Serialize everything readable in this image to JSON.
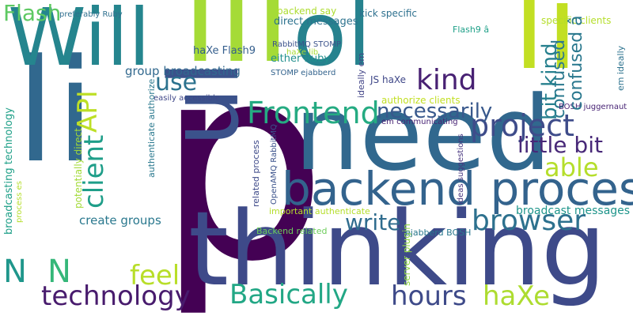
{
  "words": [
    {
      "text": "p",
      "color": "#440154"
    },
    {
      "text": "thinking",
      "color": "#3e4a89"
    },
    {
      "text": "need",
      "color": "#31688e"
    },
    {
      "text": "li",
      "color": "#31688e"
    },
    {
      "text": "lli",
      "color": "#a5db36"
    },
    {
      "text": "li",
      "color": "#c2df23"
    },
    {
      "text": "ul",
      "color": "#3b528b"
    },
    {
      "text": "ol",
      "color": "#26828e"
    },
    {
      "text": "Will",
      "color": "#25858e"
    },
    {
      "text": "backend process",
      "color": "#33638d"
    },
    {
      "text": "project",
      "color": "#3e4c8a"
    },
    {
      "text": "Frontend",
      "color": "#25ab82"
    },
    {
      "text": "kind",
      "color": "#482173"
    },
    {
      "text": "browser",
      "color": "#2d718e"
    },
    {
      "text": "Basically",
      "color": "#22a785"
    },
    {
      "text": "technology",
      "color": "#481b6d"
    },
    {
      "text": "hours",
      "color": "#3e4a89"
    },
    {
      "text": "haXe",
      "color": "#addc30"
    },
    {
      "text": "able",
      "color": "#b5de2b"
    },
    {
      "text": "necessarily",
      "color": "#38588c"
    },
    {
      "text": "feel",
      "color": "#b8de29"
    },
    {
      "text": "little bit",
      "color": "#482878"
    },
    {
      "text": "use",
      "color": "#2c728e"
    },
    {
      "text": "write",
      "color": "#2f6c8e"
    },
    {
      "text": "client",
      "color": "#1f9e89"
    },
    {
      "text": "API",
      "color": "#bddf26"
    },
    {
      "text": "Flash",
      "color": "#5ec962"
    },
    {
      "text": "confused",
      "color": "#2a788e"
    },
    {
      "text": "bit kind",
      "color": "#27808e"
    },
    {
      "text": "N",
      "color": "#1f968b"
    },
    {
      "text": "N",
      "color": "#35b779"
    },
    {
      "text": "group broadcasting",
      "color": "#31688e"
    },
    {
      "text": "create groups",
      "color": "#2a788e"
    },
    {
      "text": "broadcast messages",
      "color": "#1f958b"
    },
    {
      "text": "direct messages",
      "color": "#2c728e"
    },
    {
      "text": "backend say",
      "color": "#addc30"
    },
    {
      "text": "haXe Flash9",
      "color": "#355f8d"
    },
    {
      "text": "either Ruby",
      "color": "#218f8d"
    },
    {
      "text": "JS haXe",
      "color": "#3f4788"
    },
    {
      "text": "kick specific",
      "color": "#2d708e"
    },
    {
      "text": "specific clients",
      "color": "#b5de2b"
    },
    {
      "text": "Flash9 â",
      "color": "#1fa088"
    },
    {
      "text": "authorize clients",
      "color": "#c2df23"
    },
    {
      "text": "important authenticate",
      "color": "#b5de2b"
    },
    {
      "text": "Backend related",
      "color": "#6ccd5a"
    },
    {
      "text": "server plugin",
      "color": "#90d743"
    },
    {
      "text": "ejabberd BOSH",
      "color": "#2a788e"
    },
    {
      "text": "BOSH juggernaut",
      "color": "#482475"
    },
    {
      "text": "preferably Ruby",
      "color": "#2e6f8e"
    },
    {
      "text": "RabbitMQ STOMP",
      "color": "#3b528b"
    },
    {
      "text": "haXe lib",
      "color": "#a8db34"
    },
    {
      "text": "STOMP ejabberd",
      "color": "#33638d"
    },
    {
      "text": "easily accessible",
      "color": "#3f4788"
    },
    {
      "text": "em communicating",
      "color": "#482475"
    },
    {
      "text": "broadcasting technology",
      "color": "#1fa088"
    },
    {
      "text": "process es",
      "color": "#b5de2b"
    },
    {
      "text": "potentially direct",
      "color": "#a2da37"
    },
    {
      "text": "authenticate authorize",
      "color": "#2a788e"
    },
    {
      "text": "related process",
      "color": "#3e4a89"
    },
    {
      "text": "OpenAMQ RabbitMQ",
      "color": "#3b528b"
    },
    {
      "text": "ideally em",
      "color": "#414487"
    },
    {
      "text": "ideas suggestions",
      "color": "#46337e"
    },
    {
      "text": "em ideally",
      "color": "#2c728e"
    },
    {
      "text": "confused â",
      "color": "#2a788e"
    }
  ]
}
